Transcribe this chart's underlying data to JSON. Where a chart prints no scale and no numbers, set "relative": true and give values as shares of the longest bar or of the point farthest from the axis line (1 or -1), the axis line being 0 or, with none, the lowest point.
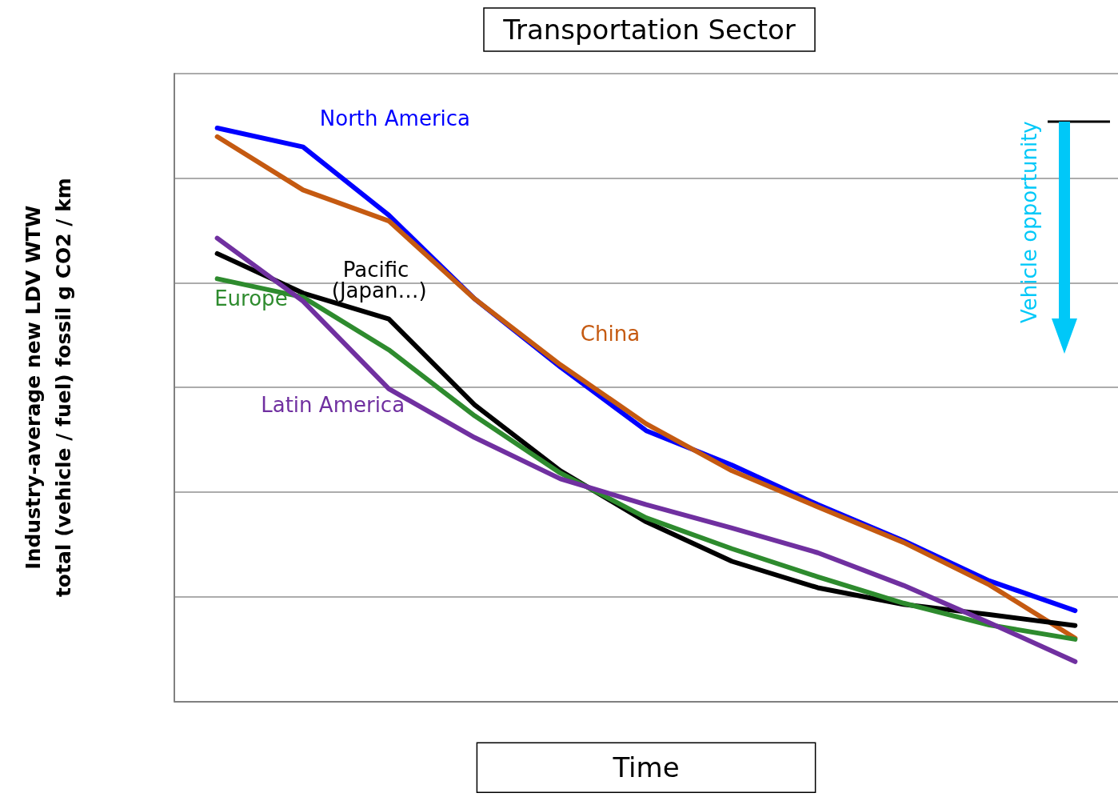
{
  "chart_data": {
    "type": "line",
    "title": "Transportation Sector",
    "xlabel": "Time",
    "ylabel": "Industry-average new LDV WTW\ntotal (vehicle / fuel) fossil g CO2 / km",
    "categories": [
      null,
      null,
      null,
      null,
      null,
      null,
      null,
      null,
      null,
      null,
      null
    ],
    "relative": true,
    "grid": "y",
    "legend": false,
    "marker": "none",
    "line_style": "solid",
    "series": [
      {
        "name": "North America",
        "color": "#0000ff",
        "values": [
          1,
          0.967,
          0.848,
          0.702,
          0.583,
          0.472,
          0.412,
          0.343,
          0.28,
          0.21,
          0.158
        ]
      },
      {
        "name": "China",
        "color": "#c55a11",
        "values": [
          0.985,
          0.892,
          0.838,
          0.702,
          0.587,
          0.484,
          0.402,
          0.339,
          0.277,
          0.203,
          0.11
        ]
      },
      {
        "name": "Pacific (Japan…)",
        "color": "#000000",
        "values": [
          0.781,
          0.712,
          0.667,
          0.517,
          0.402,
          0.313,
          0.244,
          0.198,
          0.169,
          0.151,
          0.132
        ]
      },
      {
        "name": "Europe",
        "color": "#2e8b2e",
        "values": [
          0.737,
          0.705,
          0.613,
          0.498,
          0.398,
          0.32,
          0.266,
          0.217,
          0.171,
          0.133,
          0.108
        ]
      },
      {
        "name": "Latin America",
        "color": "#7030a0",
        "values": [
          0.808,
          0.698,
          0.545,
          0.46,
          0.388,
          0.343,
          0.302,
          0.259,
          0.202,
          0.137,
          0.069
        ]
      }
    ],
    "annotations": [
      "Vehicle opportunity"
    ]
  }
}
